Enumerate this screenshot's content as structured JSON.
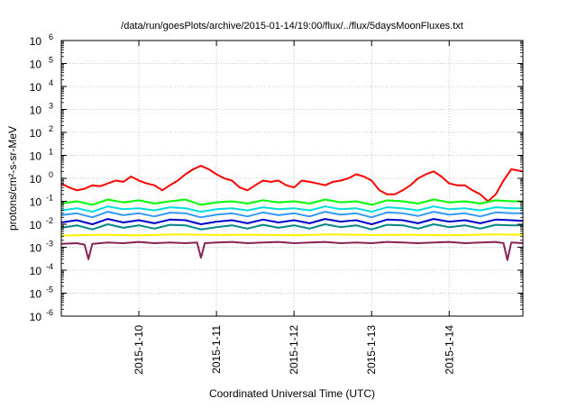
{
  "chart_data": {
    "type": "line",
    "title": "/data/run/goesPlots/archive/2015-01-14/19:00/flux/../flux/5daysMoonFluxes.txt",
    "xlabel": "Coordinated Universal Time (UTC)",
    "ylabel": "protons/cm²-s-sr-MeV",
    "yscale": "log",
    "ylim": [
      1e-06,
      1000000.0
    ],
    "xlim": [
      0,
      5.95
    ],
    "grid": true,
    "legend": "none",
    "x_tick_labels": [
      {
        "label": "2015-1-10",
        "x": 1
      },
      {
        "label": "2015-1-11",
        "x": 2
      },
      {
        "label": "2015-1-12",
        "x": 3
      },
      {
        "label": "2015-1-13",
        "x": 4
      },
      {
        "label": "2015-1-14",
        "x": 5
      }
    ],
    "y_ticks": [
      {
        "base": "10",
        "exp": "-6",
        "value": -6
      },
      {
        "base": "10",
        "exp": "-5",
        "value": -5
      },
      {
        "base": "10",
        "exp": "-4",
        "value": -4
      },
      {
        "base": "10",
        "exp": "-3",
        "value": -3
      },
      {
        "base": "10",
        "exp": "-2",
        "value": -2
      },
      {
        "base": "10",
        "exp": "-1",
        "value": -1
      },
      {
        "base": "10",
        "exp": "0",
        "value": 0
      },
      {
        "base": "10",
        "exp": "1",
        "value": 1
      },
      {
        "base": "10",
        "exp": "2",
        "value": 2
      },
      {
        "base": "10",
        "exp": "3",
        "value": 3
      },
      {
        "base": "10",
        "exp": "4",
        "value": 4
      },
      {
        "base": "10",
        "exp": "5",
        "value": 5
      },
      {
        "base": "10",
        "exp": "6",
        "value": 6
      }
    ],
    "series": [
      {
        "color": "#ff0000",
        "x": [
          0,
          0.1,
          0.2,
          0.3,
          0.4,
          0.5,
          0.6,
          0.7,
          0.8,
          0.9,
          1.0,
          1.1,
          1.2,
          1.3,
          1.4,
          1.5,
          1.6,
          1.7,
          1.8,
          1.9,
          2.0,
          2.1,
          2.2,
          2.3,
          2.4,
          2.5,
          2.6,
          2.7,
          2.8,
          2.9,
          3.0,
          3.1,
          3.2,
          3.3,
          3.4,
          3.5,
          3.6,
          3.7,
          3.8,
          3.9,
          4.0,
          4.1,
          4.2,
          4.3,
          4.4,
          4.5,
          4.6,
          4.7,
          4.8,
          4.9,
          5.0,
          5.1,
          5.2,
          5.3,
          5.4,
          5.5,
          5.6,
          5.7,
          5.8,
          5.95
        ],
        "y": [
          0.6,
          0.4,
          0.3,
          0.35,
          0.5,
          0.45,
          0.6,
          0.8,
          0.7,
          1.2,
          0.8,
          0.6,
          0.5,
          0.3,
          0.5,
          0.8,
          1.5,
          2.5,
          3.5,
          2.5,
          1.5,
          1.0,
          0.8,
          0.4,
          0.3,
          0.5,
          0.8,
          0.7,
          0.8,
          0.5,
          0.4,
          0.8,
          0.7,
          0.6,
          0.5,
          0.7,
          0.8,
          1.0,
          1.5,
          1.2,
          0.8,
          0.3,
          0.2,
          0.2,
          0.3,
          0.5,
          1.0,
          1.5,
          2.0,
          1.2,
          0.6,
          0.5,
          0.5,
          0.3,
          0.2,
          0.1,
          0.2,
          0.8,
          2.5,
          2.0
        ]
      },
      {
        "color": "#00ff00",
        "x": [
          0,
          0.2,
          0.4,
          0.6,
          0.8,
          1.0,
          1.2,
          1.4,
          1.6,
          1.8,
          2.0,
          2.2,
          2.4,
          2.6,
          2.8,
          3.0,
          3.2,
          3.4,
          3.6,
          3.8,
          4.0,
          4.2,
          4.4,
          4.6,
          4.8,
          5.0,
          5.2,
          5.4,
          5.6,
          5.8,
          5.95
        ],
        "y": [
          0.08,
          0.1,
          0.07,
          0.12,
          0.09,
          0.11,
          0.08,
          0.1,
          0.12,
          0.07,
          0.09,
          0.1,
          0.08,
          0.11,
          0.09,
          0.1,
          0.08,
          0.12,
          0.09,
          0.1,
          0.07,
          0.11,
          0.1,
          0.08,
          0.12,
          0.09,
          0.1,
          0.08,
          0.11,
          0.1,
          0.1
        ]
      },
      {
        "color": "#00dddd",
        "x": [
          0,
          0.2,
          0.4,
          0.6,
          0.8,
          1.0,
          1.2,
          1.4,
          1.6,
          1.8,
          2.0,
          2.2,
          2.4,
          2.6,
          2.8,
          3.0,
          3.2,
          3.4,
          3.6,
          3.8,
          4.0,
          4.2,
          4.4,
          4.6,
          4.8,
          5.0,
          5.2,
          5.4,
          5.6,
          5.8,
          5.95
        ],
        "y": [
          0.04,
          0.05,
          0.035,
          0.06,
          0.045,
          0.05,
          0.04,
          0.055,
          0.05,
          0.035,
          0.045,
          0.05,
          0.04,
          0.055,
          0.045,
          0.05,
          0.04,
          0.06,
          0.045,
          0.05,
          0.035,
          0.055,
          0.05,
          0.04,
          0.06,
          0.045,
          0.05,
          0.04,
          0.055,
          0.05,
          0.05
        ]
      },
      {
        "color": "#3399ff",
        "x": [
          0,
          0.2,
          0.4,
          0.6,
          0.8,
          1.0,
          1.2,
          1.4,
          1.6,
          1.8,
          2.0,
          2.2,
          2.4,
          2.6,
          2.8,
          3.0,
          3.2,
          3.4,
          3.6,
          3.8,
          4.0,
          4.2,
          4.4,
          4.6,
          4.8,
          5.0,
          5.2,
          5.4,
          5.6,
          5.8,
          5.95
        ],
        "y": [
          0.025,
          0.03,
          0.02,
          0.035,
          0.025,
          0.03,
          0.022,
          0.032,
          0.03,
          0.02,
          0.026,
          0.03,
          0.022,
          0.033,
          0.025,
          0.03,
          0.022,
          0.035,
          0.026,
          0.03,
          0.02,
          0.033,
          0.03,
          0.023,
          0.035,
          0.026,
          0.03,
          0.022,
          0.033,
          0.03,
          0.03
        ]
      },
      {
        "color": "#0000cc",
        "x": [
          0,
          0.2,
          0.4,
          0.6,
          0.8,
          1.0,
          1.2,
          1.4,
          1.6,
          1.8,
          2.0,
          2.2,
          2.4,
          2.6,
          2.8,
          3.0,
          3.2,
          3.4,
          3.6,
          3.8,
          4.0,
          4.2,
          4.4,
          4.6,
          4.8,
          5.0,
          5.2,
          5.4,
          5.6,
          5.8,
          5.95
        ],
        "y": [
          0.012,
          0.015,
          0.01,
          0.017,
          0.012,
          0.015,
          0.011,
          0.016,
          0.015,
          0.01,
          0.013,
          0.015,
          0.011,
          0.016,
          0.012,
          0.015,
          0.011,
          0.017,
          0.013,
          0.015,
          0.01,
          0.016,
          0.015,
          0.011,
          0.017,
          0.013,
          0.015,
          0.011,
          0.016,
          0.015,
          0.014
        ]
      },
      {
        "color": "#008888",
        "x": [
          0,
          0.2,
          0.4,
          0.6,
          0.8,
          1.0,
          1.2,
          1.4,
          1.6,
          1.8,
          2.0,
          2.2,
          2.4,
          2.6,
          2.8,
          3.0,
          3.2,
          3.4,
          3.6,
          3.8,
          4.0,
          4.2,
          4.4,
          4.6,
          4.8,
          5.0,
          5.2,
          5.4,
          5.6,
          5.8,
          5.95
        ],
        "y": [
          0.007,
          0.009,
          0.006,
          0.01,
          0.007,
          0.009,
          0.0065,
          0.0095,
          0.009,
          0.006,
          0.0075,
          0.009,
          0.0065,
          0.0095,
          0.007,
          0.009,
          0.0065,
          0.01,
          0.0075,
          0.009,
          0.006,
          0.0095,
          0.009,
          0.0065,
          0.01,
          0.0075,
          0.009,
          0.0065,
          0.0095,
          0.009,
          0.009
        ]
      },
      {
        "color": "#ffee00",
        "x": [
          0,
          0.5,
          1.0,
          1.5,
          2.0,
          2.5,
          3.0,
          3.5,
          4.0,
          4.5,
          5.0,
          5.5,
          5.95
        ],
        "y": [
          0.0032,
          0.0035,
          0.0033,
          0.0036,
          0.0034,
          0.0035,
          0.0033,
          0.0036,
          0.0034,
          0.0035,
          0.0033,
          0.0036,
          0.0035
        ]
      },
      {
        "color": "#882255",
        "x": [
          0,
          0.2,
          0.3,
          0.35,
          0.4,
          0.6,
          0.8,
          1.0,
          1.2,
          1.4,
          1.6,
          1.75,
          1.8,
          1.85,
          2.0,
          2.2,
          2.4,
          2.6,
          2.8,
          3.0,
          3.2,
          3.4,
          3.6,
          3.8,
          4.0,
          4.2,
          4.4,
          4.6,
          4.8,
          5.0,
          5.2,
          5.4,
          5.6,
          5.7,
          5.75,
          5.8,
          5.95
        ],
        "y": [
          0.0014,
          0.0015,
          0.0013,
          0.0003,
          0.0014,
          0.0016,
          0.0015,
          0.0017,
          0.0015,
          0.0016,
          0.0015,
          0.0016,
          0.00035,
          0.0015,
          0.0016,
          0.0017,
          0.0015,
          0.0016,
          0.0017,
          0.0015,
          0.0016,
          0.0017,
          0.0015,
          0.0016,
          0.0015,
          0.0017,
          0.0016,
          0.0015,
          0.0016,
          0.0017,
          0.0015,
          0.0016,
          0.0017,
          0.0015,
          0.00028,
          0.0016,
          0.0015
        ]
      }
    ]
  }
}
